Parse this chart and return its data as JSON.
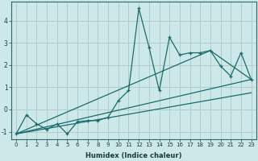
{
  "xlabel": "Humidex (Indice chaleur)",
  "ylabel": "",
  "background_color": "#cce8e8",
  "grid_color": "#b0cccc",
  "line_color": "#1a6b6b",
  "xlim": [
    -0.5,
    23.5
  ],
  "ylim": [
    -1.35,
    4.85
  ],
  "xticks": [
    0,
    1,
    2,
    3,
    4,
    5,
    6,
    7,
    8,
    9,
    10,
    11,
    12,
    13,
    14,
    15,
    16,
    17,
    18,
    19,
    20,
    21,
    22,
    23
  ],
  "yticks": [
    -1,
    0,
    1,
    2,
    3,
    4
  ],
  "series1_x": [
    0,
    1,
    2,
    3,
    4,
    5,
    6,
    7,
    8,
    9,
    10,
    11,
    12,
    13,
    14,
    15,
    16,
    17,
    18,
    19,
    20,
    21,
    22,
    23
  ],
  "series1_y": [
    -1.1,
    -0.25,
    -0.65,
    -0.9,
    -0.65,
    -1.1,
    -0.55,
    -0.5,
    -0.5,
    -0.35,
    0.4,
    0.85,
    4.55,
    2.8,
    0.85,
    3.25,
    2.45,
    2.55,
    2.55,
    2.65,
    1.95,
    1.5,
    2.55,
    1.35
  ],
  "line1_x": [
    0,
    23
  ],
  "line1_y": [
    -1.1,
    0.75
  ],
  "line2_x": [
    0,
    23
  ],
  "line2_y": [
    -1.1,
    1.35
  ],
  "line3_x": [
    0,
    19,
    23
  ],
  "line3_y": [
    -1.1,
    2.65,
    1.35
  ]
}
